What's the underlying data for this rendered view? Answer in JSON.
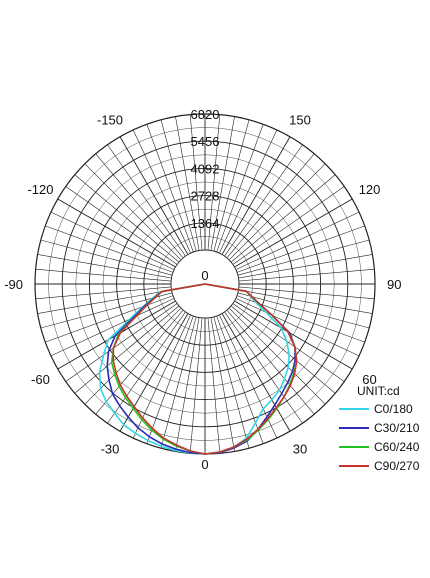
{
  "chart_data": {
    "type": "polar-line",
    "unit_label": "UNIT:cd",
    "r_max": 6820,
    "ring_values": [
      0,
      1364,
      2728,
      4092,
      5456,
      6820
    ],
    "ring_labels": [
      "0",
      "1364",
      "2728",
      "4092",
      "5456",
      "6820"
    ],
    "angle_labels": [
      {
        "angle": 0,
        "text": "0"
      },
      {
        "angle": 30,
        "text": "30"
      },
      {
        "angle": -30,
        "text": "-30"
      },
      {
        "angle": 60,
        "text": "60"
      },
      {
        "angle": -60,
        "text": "-60"
      },
      {
        "angle": 90,
        "text": "90"
      },
      {
        "angle": -90,
        "text": "-90"
      },
      {
        "angle": 120,
        "text": "120"
      },
      {
        "angle": -120,
        "text": "-120"
      },
      {
        "angle": 150,
        "text": "150"
      },
      {
        "angle": -150,
        "text": "-150"
      }
    ],
    "series": [
      {
        "name": "C0/180",
        "color": "#33d6e6",
        "points": [
          [
            -90,
            0
          ],
          [
            -80,
            600
          ],
          [
            -70,
            1600
          ],
          [
            -60,
            3900
          ],
          [
            -55,
            4500
          ],
          [
            -50,
            5200
          ],
          [
            -45,
            5700
          ],
          [
            -40,
            6000
          ],
          [
            -35,
            6200
          ],
          [
            -30,
            6450
          ],
          [
            -25,
            6550
          ],
          [
            -20,
            6650
          ],
          [
            -15,
            6720
          ],
          [
            -10,
            6780
          ],
          [
            -5,
            6800
          ],
          [
            0,
            6820
          ],
          [
            5,
            6780
          ],
          [
            10,
            6600
          ],
          [
            15,
            6300
          ],
          [
            20,
            5700
          ],
          [
            25,
            5200
          ],
          [
            30,
            5000
          ],
          [
            35,
            4800
          ],
          [
            40,
            4500
          ],
          [
            45,
            4200
          ],
          [
            50,
            3800
          ],
          [
            55,
            3300
          ],
          [
            60,
            2700
          ],
          [
            65,
            1700
          ],
          [
            70,
            1000
          ],
          [
            80,
            400
          ],
          [
            90,
            0
          ]
        ]
      },
      {
        "name": "C30/210",
        "color": "#2a2ab8",
        "points": [
          [
            -90,
            0
          ],
          [
            -80,
            500
          ],
          [
            -70,
            1500
          ],
          [
            -60,
            3500
          ],
          [
            -55,
            4200
          ],
          [
            -50,
            4700
          ],
          [
            -45,
            5100
          ],
          [
            -40,
            5500
          ],
          [
            -35,
            5750
          ],
          [
            -30,
            6000
          ],
          [
            -25,
            6250
          ],
          [
            -20,
            6450
          ],
          [
            -15,
            6600
          ],
          [
            -10,
            6700
          ],
          [
            -5,
            6780
          ],
          [
            0,
            6820
          ],
          [
            5,
            6780
          ],
          [
            10,
            6650
          ],
          [
            15,
            6450
          ],
          [
            20,
            6050
          ],
          [
            25,
            5650
          ],
          [
            30,
            5300
          ],
          [
            35,
            5000
          ],
          [
            40,
            4750
          ],
          [
            45,
            4500
          ],
          [
            50,
            4200
          ],
          [
            55,
            3800
          ],
          [
            60,
            3200
          ],
          [
            65,
            2000
          ],
          [
            70,
            1200
          ],
          [
            80,
            400
          ],
          [
            90,
            0
          ]
        ]
      },
      {
        "name": "C60/240",
        "color": "#22c422",
        "points": [
          [
            -90,
            0
          ],
          [
            -80,
            500
          ],
          [
            -70,
            1400
          ],
          [
            -60,
            3300
          ],
          [
            -55,
            3900
          ],
          [
            -50,
            4400
          ],
          [
            -45,
            4700
          ],
          [
            -40,
            5000
          ],
          [
            -35,
            5250
          ],
          [
            -30,
            5500
          ],
          [
            -25,
            5800
          ],
          [
            -20,
            6100
          ],
          [
            -15,
            6350
          ],
          [
            -10,
            6550
          ],
          [
            -5,
            6700
          ],
          [
            0,
            6820
          ],
          [
            5,
            6750
          ],
          [
            10,
            6600
          ],
          [
            15,
            6400
          ],
          [
            20,
            6100
          ],
          [
            25,
            5800
          ],
          [
            30,
            5500
          ],
          [
            35,
            5200
          ],
          [
            40,
            4900
          ],
          [
            45,
            4600
          ],
          [
            50,
            4300
          ],
          [
            55,
            3800
          ],
          [
            60,
            3100
          ],
          [
            65,
            2000
          ],
          [
            70,
            1200
          ],
          [
            80,
            400
          ],
          [
            90,
            0
          ]
        ]
      },
      {
        "name": "C90/270",
        "color": "#c8322a",
        "points": [
          [
            -90,
            0
          ],
          [
            -80,
            500
          ],
          [
            -70,
            1400
          ],
          [
            -60,
            3200
          ],
          [
            -55,
            3900
          ],
          [
            -50,
            4300
          ],
          [
            -45,
            4600
          ],
          [
            -40,
            4900
          ],
          [
            -35,
            5150
          ],
          [
            -30,
            5400
          ],
          [
            -25,
            5700
          ],
          [
            -20,
            6000
          ],
          [
            -15,
            6300
          ],
          [
            -10,
            6500
          ],
          [
            -5,
            6700
          ],
          [
            0,
            6820
          ],
          [
            5,
            6750
          ],
          [
            10,
            6600
          ],
          [
            15,
            6350
          ],
          [
            20,
            6050
          ],
          [
            25,
            5750
          ],
          [
            30,
            5450
          ],
          [
            35,
            5200
          ],
          [
            40,
            4950
          ],
          [
            45,
            4650
          ],
          [
            50,
            4300
          ],
          [
            55,
            3800
          ],
          [
            60,
            3100
          ],
          [
            65,
            2000
          ],
          [
            70,
            1200
          ],
          [
            80,
            400
          ],
          [
            90,
            0
          ]
        ]
      }
    ]
  }
}
